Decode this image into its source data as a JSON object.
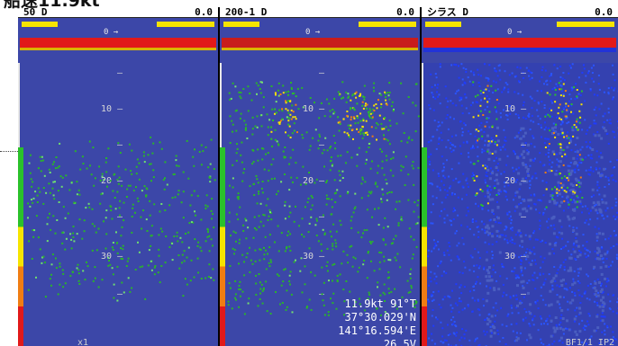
{
  "caption": "船速11.9kt",
  "panels": [
    {
      "name": "50  D",
      "value": "0.0",
      "zero_label": "0 →"
    },
    {
      "name": "200-1  D",
      "value": "0.0",
      "zero_label": "0 →"
    },
    {
      "name": "シラス  D",
      "value": "0.0",
      "zero_label": "0 →"
    }
  ],
  "depth_labels": [
    "10",
    "20",
    "30"
  ],
  "nav_info": {
    "speed_heading": "11.9kt  91°T",
    "latitude": "37°30.029'N",
    "longitude": "141°16.594'E",
    "extra": "26.5V"
  },
  "footer": {
    "left": "x1",
    "right": "BF1/1 IP2"
  },
  "colors": {
    "background": "#3c47a8",
    "header": "#ffffff",
    "marker": "#f6e400",
    "seabed": "#e11919",
    "scale": [
      "#e11919",
      "#f07d12",
      "#f6e400",
      "#2ac12a",
      "#3c47a8"
    ]
  }
}
